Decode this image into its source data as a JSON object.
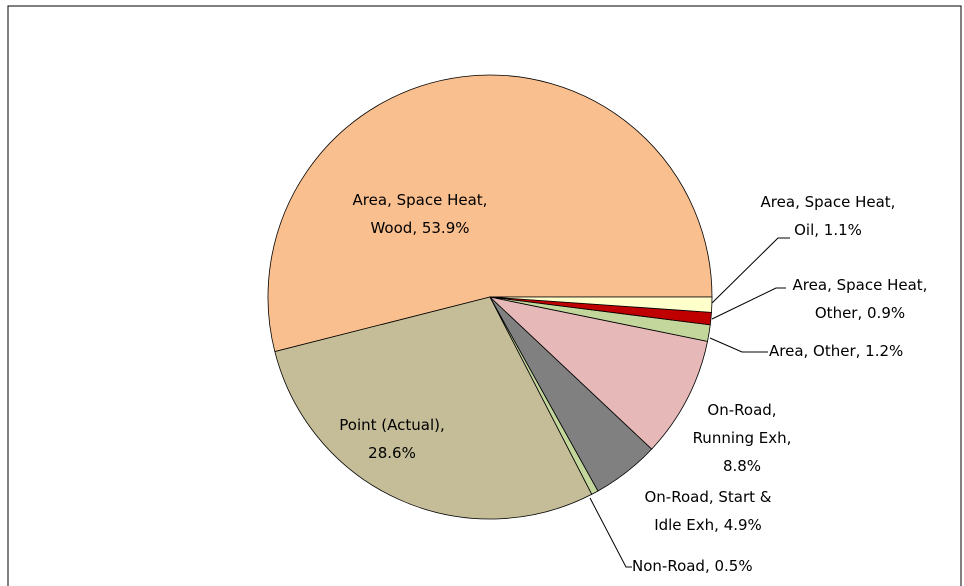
{
  "chart_data": {
    "type": "pie",
    "categories": [
      "Area, Space Heat, Wood, 53.9%",
      "Point (Actual), 28.6%",
      "Non-Road, 0.5%",
      "On-Road, Start & Idle Exh, 4.9%",
      "On-Road, Running Exh, 8.8%",
      "Area, Other, 1.2%",
      "Area, Space Heat, Other, 0.9%",
      "Area, Space Heat, Oil, 1.1%"
    ],
    "values": [
      53.9,
      28.6,
      0.5,
      4.9,
      8.8,
      1.2,
      0.9,
      1.1
    ],
    "colors": [
      "#f9bf8f",
      "#c4bd97",
      "#c3d69b",
      "#808080",
      "#e6b9b8",
      "#c3d69b",
      "#c00000",
      "#ffffcc"
    ]
  }
}
